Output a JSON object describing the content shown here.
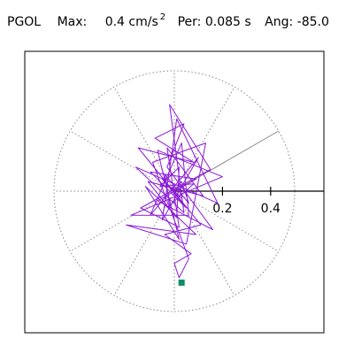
{
  "header": {
    "station": "PGOL",
    "max_label": "Max:",
    "max_value": "0.4",
    "max_unit": "cm/s",
    "max_unit_exp": "2",
    "per_label": "Per:",
    "per_value": "0.085 s",
    "ang_label": "Ang:",
    "ang_value": "-85.0"
  },
  "colors": {
    "trace": "#8a1ad6",
    "marker": "#0b8f66",
    "grid": "#888888",
    "axis": "#000000"
  },
  "chart_data": {
    "type": "scatter",
    "title": "",
    "radial_ticks": [
      "0.2",
      "0.4"
    ],
    "radial_max": 0.5,
    "spoke_step_deg": 30,
    "peak_angle_deg": -85.0,
    "max_amplitude": 0.4,
    "trace": [
      [
        0.0,
        0.0
      ],
      [
        0.03,
        0.04
      ],
      [
        0.06,
        -0.05
      ],
      [
        -0.04,
        0.07
      ],
      [
        -0.02,
        -0.06
      ],
      [
        0.08,
        0.03
      ],
      [
        -0.06,
        0.02
      ],
      [
        0.02,
        0.1
      ],
      [
        0.01,
        -0.11
      ],
      [
        -0.11,
        0.04
      ],
      [
        0.12,
        -0.02
      ],
      [
        -0.03,
        0.18
      ],
      [
        0.02,
        -0.15
      ],
      [
        -0.14,
        -0.07
      ],
      [
        0.15,
        0.09
      ],
      [
        -0.02,
        0.36
      ],
      [
        0.04,
        -0.09
      ],
      [
        -0.16,
        0.1
      ],
      [
        0.18,
        -0.05
      ],
      [
        0.01,
        0.3
      ],
      [
        -0.05,
        -0.12
      ],
      [
        0.1,
        0.14
      ],
      [
        -0.1,
        -0.1
      ],
      [
        0.03,
        0.2
      ],
      [
        0.06,
        -0.1
      ],
      [
        -0.18,
        -0.1
      ],
      [
        0.2,
        0.06
      ],
      [
        -0.07,
        0.17
      ],
      [
        0.02,
        -0.2
      ],
      [
        -0.12,
        0.02
      ],
      [
        0.09,
        -0.18
      ],
      [
        -0.2,
        -0.14
      ],
      [
        0.05,
        -0.22
      ],
      [
        0.13,
        0.2
      ],
      [
        -0.09,
        0.12
      ],
      [
        0.06,
        -0.28
      ],
      [
        0.02,
        -0.36
      ],
      [
        0.0,
        -0.3
      ],
      [
        0.07,
        -0.26
      ],
      [
        -0.04,
        -0.18
      ],
      [
        0.11,
        -0.14
      ],
      [
        -0.15,
        0.18
      ],
      [
        0.08,
        0.12
      ],
      [
        -0.08,
        0.22
      ],
      [
        0.04,
        0.28
      ],
      [
        -0.03,
        0.1
      ],
      [
        0.16,
        -0.16
      ],
      [
        -0.07,
        -0.04
      ],
      [
        0.09,
        0.05
      ],
      [
        -0.1,
        0.08
      ],
      [
        0.05,
        -0.07
      ],
      [
        -0.05,
        0.05
      ],
      [
        0.03,
        -0.03
      ],
      [
        0.0,
        0.0
      ]
    ],
    "end_point": [
      0.03,
      -0.38
    ]
  }
}
